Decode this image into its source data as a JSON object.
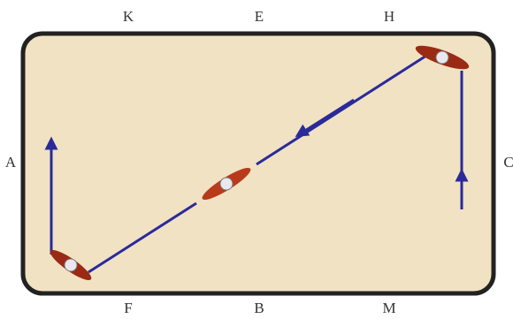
{
  "letters": {
    "top": [
      "K",
      "E",
      "H"
    ],
    "left": "A",
    "right": "C",
    "bottom": [
      "F",
      "B",
      "M"
    ]
  }
}
